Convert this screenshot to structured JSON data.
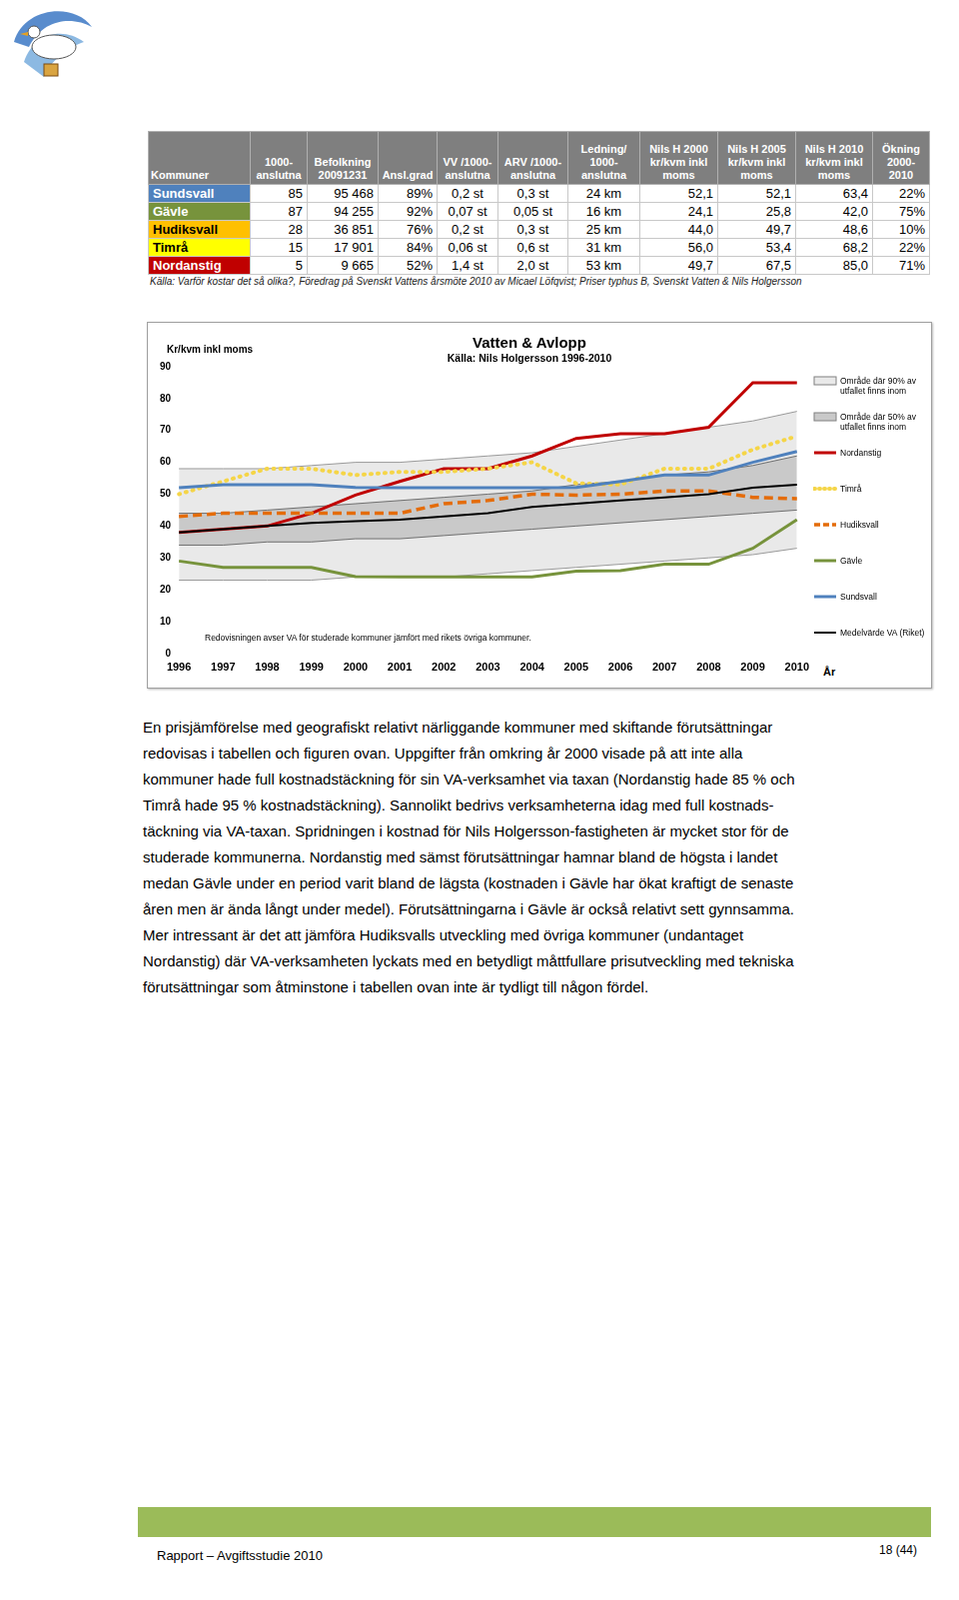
{
  "table": {
    "columns": [
      "Kommuner",
      "1000-\nanslutna",
      "Befolkning\n20091231",
      "Ansl.grad",
      "VV /1000-\nanslutna",
      "ARV /1000-\nanslutna",
      "Ledning/\n1000-\nanslutna",
      "Nils H 2000\nkr/kvm inkl\nmoms",
      "Nils H 2005\nkr/kvm inkl\nmoms",
      "Nils H 2010\nkr/kvm inkl\nmoms",
      "Ökning\n2000-2010"
    ],
    "rows": [
      {
        "color": "#4f81bd",
        "cells": [
          "Sundsvall",
          "85",
          "95 468",
          "89%",
          "0,2 st",
          "0,3 st",
          "24 km",
          "52,1",
          "52,1",
          "63,4",
          "22%"
        ]
      },
      {
        "color": "#77933c",
        "cells": [
          "Gävle",
          "87",
          "94 255",
          "92%",
          "0,07 st",
          "0,05 st",
          "16 km",
          "24,1",
          "25,8",
          "42,0",
          "75%"
        ]
      },
      {
        "color": "#ffc000",
        "cells": [
          "Hudiksvall",
          "28",
          "36 851",
          "76%",
          "0,2 st",
          "0,3 st",
          "25 km",
          "44,0",
          "49,7",
          "48,6",
          "10%"
        ]
      },
      {
        "color": "#ffff00",
        "cells": [
          "Timrå",
          "15",
          "17 901",
          "84%",
          "0,06 st",
          "0,6 st",
          "31 km",
          "56,0",
          "53,4",
          "68,2",
          "22%"
        ]
      },
      {
        "color": "#c00000",
        "cells": [
          "Nordanstig",
          "5",
          "9 665",
          "52%",
          "1,4 st",
          "2,0 st",
          "53 km",
          "49,7",
          "67,5",
          "85,0",
          "71%"
        ]
      }
    ],
    "source": "Källa: Varför kostar det så olika?, Föredrag på Svenskt Vattens årsmöte 2010 av Micael Löfqvist; Priser typhus B, Svenskt Vatten & Nils Holgersson"
  },
  "chart_data": {
    "type": "line",
    "title": "Vatten & Avlopp",
    "subtitle": "Källa: Nils Holgersson 1996-2010",
    "y_label": "Kr/kvm inkl moms",
    "x_label": "År",
    "annotation": "Redovisningen avser VA för studerade kommuner jämfört med rikets övriga kommuner.",
    "categories": [
      "1996",
      "1997",
      "1998",
      "1999",
      "2000",
      "2001",
      "2002",
      "2003",
      "2004",
      "2005",
      "2006",
      "2007",
      "2008",
      "2009",
      "2010"
    ],
    "ylim": [
      0,
      90
    ],
    "yticks": [
      0,
      10,
      20,
      30,
      40,
      50,
      60,
      70,
      80,
      90
    ],
    "grid": false,
    "legend": "right",
    "series": [
      {
        "name": "Område där 90% av utfallet finns inom",
        "type": "area",
        "color": "#e9e9e9",
        "low": [
          23,
          23,
          23,
          23,
          24,
          24,
          24,
          25,
          26,
          27,
          28,
          29,
          30,
          31,
          33
        ],
        "high": [
          58,
          58,
          58,
          59,
          60,
          60,
          61,
          62,
          63,
          65,
          67,
          69,
          71,
          73,
          76
        ]
      },
      {
        "name": "Område där 50% av utfallet finns inom",
        "type": "area",
        "color": "#c9c9c9",
        "low": [
          34,
          34,
          35,
          35,
          36,
          36,
          37,
          38,
          39,
          40,
          41,
          42,
          43,
          44,
          45
        ],
        "high": [
          44,
          44,
          45,
          46,
          47,
          48,
          49,
          50,
          51,
          53,
          54,
          56,
          57,
          59,
          62
        ]
      },
      {
        "name": "Nordanstig",
        "color": "#c00000",
        "line_style": "solid",
        "values": [
          38,
          39,
          40,
          44,
          49.7,
          54,
          58,
          58,
          62,
          67.5,
          69,
          69,
          71,
          85,
          85
        ]
      },
      {
        "name": "Timrå",
        "color": "#f5d547",
        "line_style": "dotted",
        "values": [
          50,
          54,
          58,
          58,
          56,
          57,
          57,
          58,
          60,
          53.4,
          53,
          58,
          58,
          64,
          68.2
        ]
      },
      {
        "name": "Hudiksvall",
        "color": "#e46c0a",
        "line_style": "dashed",
        "values": [
          43,
          44,
          44,
          44,
          44,
          44,
          47,
          48,
          50,
          49.7,
          50,
          51,
          51,
          49,
          48.6
        ]
      },
      {
        "name": "Gävle",
        "color": "#77933c",
        "line_style": "solid",
        "values": [
          29,
          27,
          27,
          27,
          24.1,
          24,
          24,
          24,
          24,
          25.8,
          26,
          28,
          28,
          33,
          42
        ]
      },
      {
        "name": "Sundsvall",
        "color": "#4f81bd",
        "line_style": "solid",
        "values": [
          52,
          53,
          53,
          53,
          52.1,
          52,
          52,
          52,
          52,
          52.1,
          54,
          56,
          56,
          60,
          63.4
        ]
      },
      {
        "name": "Medelvärde VA (Riket)",
        "color": "#000000",
        "line_style": "solid",
        "values": [
          38,
          39,
          40,
          41,
          41.5,
          42,
          43,
          44,
          46,
          47,
          48,
          49,
          50,
          52,
          53
        ]
      }
    ]
  },
  "paragraph": [
    "En prisjämförelse med geografiskt relativt närliggande kommuner med skiftande förutsättningar",
    "redovisas i tabellen och figuren ovan. Uppgifter från omkring år 2000 visade på att inte alla",
    "kommuner hade full kostnadstäckning för sin VA-verksamhet via taxan (Nordanstig hade 85 % och",
    "Timrå hade 95 % kostnadstäckning). Sannolikt bedrivs verksamheterna idag med full kostnads-",
    "täckning via VA-taxan. Spridningen i kostnad för Nils Holgersson-fastigheten är mycket stor för de",
    "studerade kommunerna. Nordanstig med sämst förutsättningar hamnar bland de högsta i landet",
    "medan Gävle under en period varit bland de lägsta (kostnaden i Gävle har ökat kraftigt de senaste",
    "åren men är ända långt under medel). Förutsättningarna i Gävle är också relativt sett gynnsamma.",
    "Mer intressant är det att jämföra Hudiksvalls utveckling med övriga kommuner (undantaget",
    "Nordanstig) där VA-verksamheten lyckats med en betydligt måttfullare prisutveckling med tekniska",
    "förutsättningar som åtminstone i tabellen ovan inte är tydligt till någon fördel."
  ],
  "footer": {
    "left": "Rapport – Avgiftsstudie 2010",
    "right": "18 (44)"
  }
}
